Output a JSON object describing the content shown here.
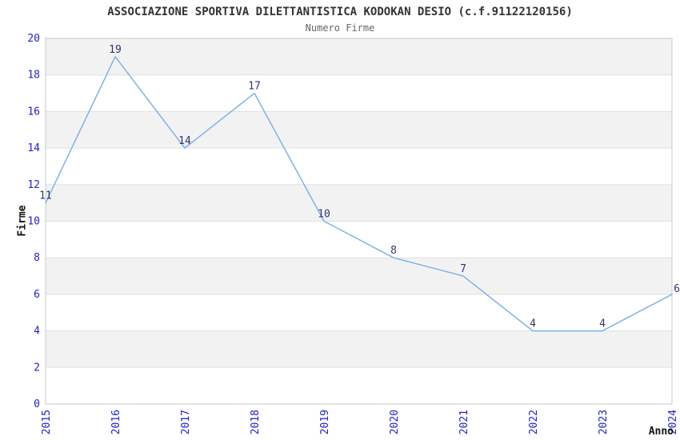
{
  "chart_data": {
    "type": "line",
    "title": "ASSOCIAZIONE SPORTIVA DILETTANTISTICA KODOKAN DESIO (c.f.91122120156)",
    "subtitle": "Numero Firme",
    "xlabel": "Anno",
    "ylabel": "Firme",
    "x": [
      2015,
      2016,
      2017,
      2018,
      2019,
      2020,
      2021,
      2022,
      2023,
      2024
    ],
    "series": [
      {
        "name": "Numero Firme",
        "values": [
          11,
          19,
          14,
          17,
          10,
          8,
          7,
          4,
          4,
          6
        ]
      }
    ],
    "xlim": [
      2015,
      2024
    ],
    "ylim": [
      0,
      20
    ],
    "ytick_step": 2,
    "yticks": [
      0,
      2,
      4,
      6,
      8,
      10,
      12,
      14,
      16,
      18,
      20
    ],
    "xtick_rotation": -90,
    "legend": "none",
    "grid": "horizontal gridlines every 2 units with alternating shaded bands",
    "colors": {
      "line": "#7FB2E8",
      "tick_label": "#2222CC",
      "data_label": "#333377",
      "band": "#F2F2F2",
      "grid": "#E0E0E0",
      "plot_border": "#C8C8C8",
      "title": "#333333",
      "subtitle": "#666666",
      "axis_title": "#111111",
      "background": "#FFFFFF"
    }
  }
}
